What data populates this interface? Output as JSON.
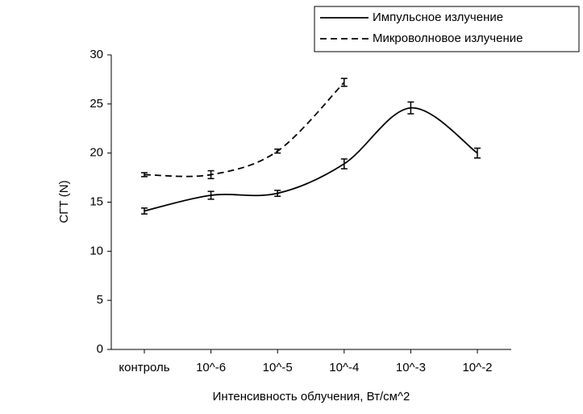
{
  "chart_data": {
    "type": "line",
    "xlabel": "Интенсивность облучения, Вт/см^2",
    "ylabel": "СГТ (N)",
    "categories": [
      "контроль",
      "10^-6",
      "10^-5",
      "10^-4",
      "10^-3",
      "10^-2"
    ],
    "series": [
      {
        "name": "Импульсное излучение",
        "color": "#000000",
        "linestyle": "solid",
        "values": [
          14.1,
          15.7,
          15.9,
          18.9,
          24.6,
          20.0
        ],
        "errors": [
          0.3,
          0.4,
          0.3,
          0.5,
          0.6,
          0.5
        ]
      },
      {
        "name": "Микроволновое излучение",
        "color": "#000000",
        "linestyle": "dashed",
        "values": [
          17.8,
          17.8,
          20.2,
          27.2,
          null,
          null
        ],
        "errors": [
          0.2,
          0.4,
          0.2,
          0.4,
          null,
          null
        ]
      }
    ],
    "ylim": [
      0,
      30
    ],
    "yticks": [
      0,
      5,
      10,
      15,
      20,
      25,
      30
    ],
    "smooth": true
  }
}
